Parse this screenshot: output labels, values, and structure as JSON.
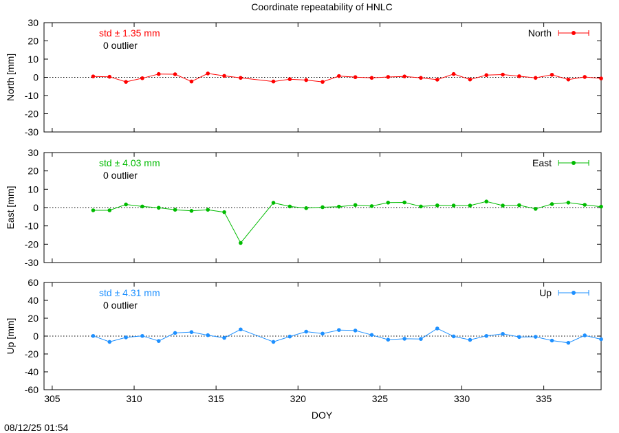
{
  "title": "Coordinate repeatability of HNLC",
  "timestamp": "08/12/25 01:54",
  "chart_data": [
    {
      "type": "line",
      "ylabel": "North [mm]",
      "legend": "North",
      "legend_position": "top-right",
      "color": "#ff0000",
      "std_text": "std ± 1.35 mm",
      "outlier_text": "0 outlier",
      "ylim": [
        -30,
        30
      ],
      "yticks": [
        30,
        20,
        10,
        0,
        -10,
        -20,
        -30
      ],
      "grid": false,
      "zero_line": true,
      "x": [
        307.5,
        308.5,
        309.5,
        310.5,
        311.5,
        312.5,
        313.5,
        314.5,
        315.5,
        316.5,
        318.5,
        319.5,
        320.5,
        321.5,
        322.5,
        323.5,
        324.5,
        325.5,
        326.5,
        327.5,
        328.5,
        329.5,
        330.5,
        331.5,
        332.5,
        333.5,
        334.5,
        335.5,
        336.5,
        337.5,
        338.5
      ],
      "y": [
        0.5,
        0.3,
        -2.5,
        -0.5,
        1.8,
        1.7,
        -2.3,
        2.1,
        0.8,
        -0.3,
        -2.3,
        -1.0,
        -1.5,
        -2.5,
        0.7,
        0.1,
        -0.3,
        0.2,
        0.5,
        -0.3,
        -1.3,
        1.8,
        -1.2,
        1.2,
        1.5,
        0.6,
        -0.3,
        1.4,
        -1.2,
        0.2,
        -0.6
      ]
    },
    {
      "type": "line",
      "ylabel": "East [mm]",
      "legend": "East",
      "legend_position": "top-right",
      "color": "#00bb00",
      "std_text": "std ± 4.03 mm",
      "outlier_text": "0 outlier",
      "ylim": [
        -30,
        30
      ],
      "yticks": [
        30,
        20,
        10,
        0,
        -10,
        -20,
        -30
      ],
      "grid": false,
      "zero_line": true,
      "x": [
        307.5,
        308.5,
        309.5,
        310.5,
        311.5,
        312.5,
        313.5,
        314.5,
        315.5,
        316.5,
        318.5,
        319.5,
        320.5,
        321.5,
        322.5,
        323.5,
        324.5,
        325.5,
        326.5,
        327.5,
        328.5,
        329.5,
        330.5,
        331.5,
        332.5,
        333.5,
        334.5,
        335.5,
        336.5,
        337.5,
        338.5
      ],
      "y": [
        -1.5,
        -1.5,
        1.7,
        0.6,
        -0.1,
        -1.2,
        -1.8,
        -1.2,
        -2.5,
        -19.3,
        2.6,
        0.6,
        -0.3,
        0.2,
        0.5,
        1.4,
        0.8,
        2.7,
        2.8,
        0.6,
        1.2,
        1.1,
        1.1,
        3.3,
        1.1,
        1.3,
        -0.7,
        1.9,
        2.7,
        1.5,
        0.5
      ]
    },
    {
      "type": "line",
      "ylabel": "Up [mm]",
      "legend": "Up",
      "legend_position": "top-right",
      "color": "#1e90ff",
      "std_text": "std ± 4.31 mm",
      "outlier_text": "0 outlier",
      "ylim": [
        -60,
        60
      ],
      "yticks": [
        60,
        40,
        20,
        0,
        -20,
        -40,
        -60
      ],
      "grid": false,
      "zero_line": true,
      "x": [
        307.5,
        308.5,
        309.5,
        310.5,
        311.5,
        312.5,
        313.5,
        314.5,
        315.5,
        316.5,
        318.5,
        319.5,
        320.5,
        321.5,
        322.5,
        323.5,
        324.5,
        325.5,
        326.5,
        327.5,
        328.5,
        329.5,
        330.5,
        331.5,
        332.5,
        333.5,
        334.5,
        335.5,
        336.5,
        337.5,
        338.5
      ],
      "y": [
        0.2,
        -6.5,
        -1.5,
        0.2,
        -5.5,
        3.5,
        4.5,
        1.0,
        -2.0,
        7.5,
        -6.5,
        -0.5,
        5.0,
        2.8,
        6.8,
        6.2,
        1.3,
        -4.0,
        -3.0,
        -3.2,
        8.5,
        -0.3,
        -4.2,
        0.2,
        2.5,
        -1.0,
        -0.8,
        -5.0,
        -7.5,
        0.8,
        -3.5
      ]
    }
  ],
  "x_axis": {
    "label": "DOY",
    "xlim": [
      304.5,
      338.5
    ],
    "ticks": [
      305,
      310,
      315,
      320,
      325,
      330,
      335
    ],
    "tick_labels": [
      "305",
      "310",
      "315",
      "320",
      "325",
      "330",
      "335"
    ]
  }
}
